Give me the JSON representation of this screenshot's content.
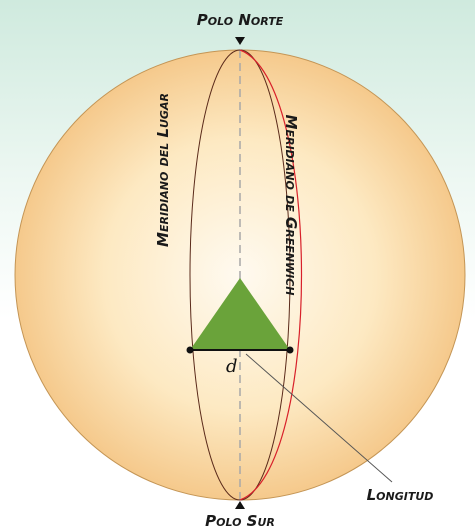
{
  "labels": {
    "north_pole": "Polo Norte",
    "local_meridian": "Meridiano del Lugar",
    "greenwich_meridian": "Meridiano de Greenwich",
    "distance": "d",
    "longitude": "Longitud",
    "south_pole": "Polo Sur"
  }
}
